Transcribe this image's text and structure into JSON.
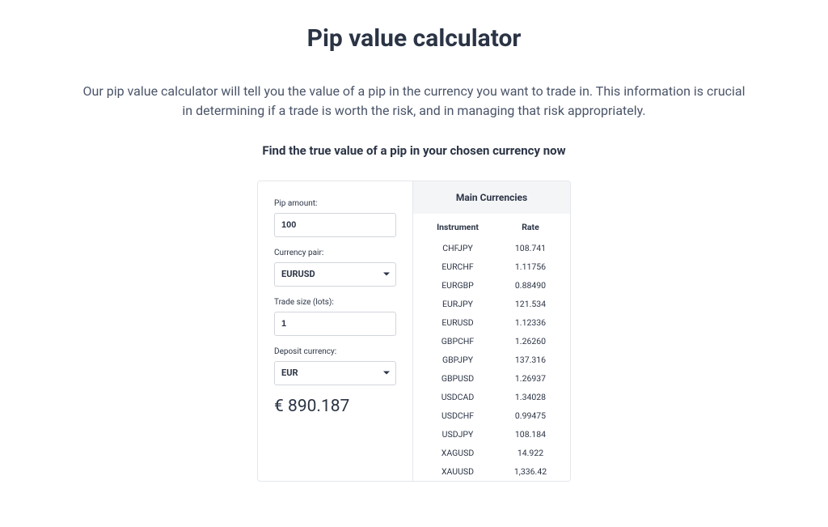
{
  "page": {
    "title": "Pip value calculator",
    "description": "Our pip value calculator will tell you the value of a pip in the currency you want to trade in. This information is crucial in determining if a trade is worth the risk, and in managing that risk appropriately.",
    "subheading": "Find the true value of a pip in your chosen currency now"
  },
  "form": {
    "pip_amount_label": "Pip amount:",
    "pip_amount_value": "100",
    "currency_pair_label": "Currency pair:",
    "currency_pair_value": "EURUSD",
    "trade_size_label": "Trade size (lots):",
    "trade_size_value": "1",
    "deposit_currency_label": "Deposit currency:",
    "deposit_currency_value": "EUR",
    "result": "€ 890.187"
  },
  "rates": {
    "header": "Main Currencies",
    "col_instrument": "Instrument",
    "col_rate": "Rate",
    "rows": [
      {
        "instrument": "CHFJPY",
        "rate": "108.741"
      },
      {
        "instrument": "EURCHF",
        "rate": "1.11756"
      },
      {
        "instrument": "EURGBP",
        "rate": "0.88490"
      },
      {
        "instrument": "EURJPY",
        "rate": "121.534"
      },
      {
        "instrument": "EURUSD",
        "rate": "1.12336"
      },
      {
        "instrument": "GBPCHF",
        "rate": "1.26260"
      },
      {
        "instrument": "GBPJPY",
        "rate": "137.316"
      },
      {
        "instrument": "GBPUSD",
        "rate": "1.26937"
      },
      {
        "instrument": "USDCAD",
        "rate": "1.34028"
      },
      {
        "instrument": "USDCHF",
        "rate": "0.99475"
      },
      {
        "instrument": "USDJPY",
        "rate": "108.184"
      },
      {
        "instrument": "XAGUSD",
        "rate": "14.922"
      },
      {
        "instrument": "XAUUSD",
        "rate": "1,336.42"
      }
    ]
  }
}
